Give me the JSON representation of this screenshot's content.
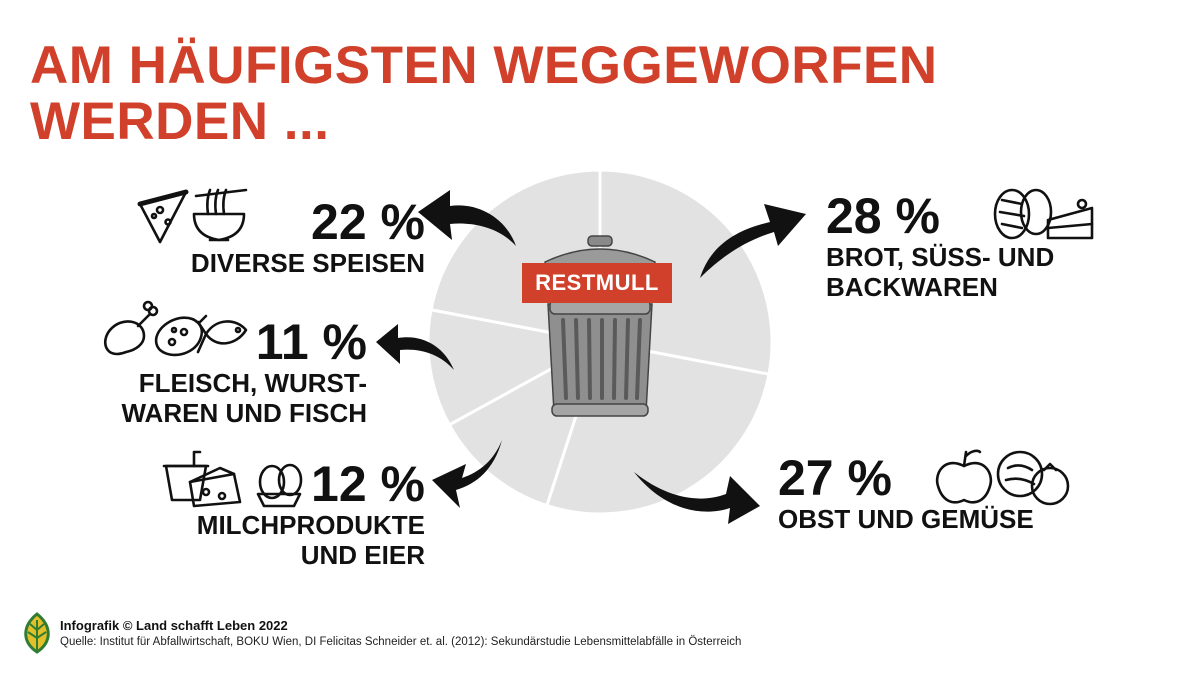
{
  "header": {
    "title_line1": "AM HÄUFIGSTEN WEGGEWORFEN",
    "title_line2": "WERDEN ..."
  },
  "center": {
    "bin_label": "RESTMULL"
  },
  "chart_data": {
    "type": "pie",
    "title": "AM HÄUFIGSTEN WEGGEWORFEN WERDEN ...",
    "unit": "%",
    "slices": [
      {
        "label": "BROT, SÜSS- UND BACKWAREN",
        "value": 28,
        "display": "28 %"
      },
      {
        "label": "OBST UND GEMÜSE",
        "value": 27,
        "display": "27 %"
      },
      {
        "label": "MILCHPRODUKTE UND EIER",
        "value": 12,
        "display": "12 %"
      },
      {
        "label": "FLEISCH, WURSTWAREN UND FISCH",
        "value": 11,
        "display": "11 %"
      },
      {
        "label": "DIVERSE SPEISEN",
        "value": 22,
        "display": "22 %"
      }
    ],
    "colors": {
      "slice": "#e2e2e2",
      "separator": "#ffffff",
      "accent": "#d0402a",
      "arrow": "#111111"
    }
  },
  "categories": {
    "brot": {
      "pct": "28 %",
      "label": "BROT, SÜSS- UND\nBACKWAREN",
      "icons": [
        "bread-icon",
        "cake-icon"
      ]
    },
    "obst": {
      "pct": "27 %",
      "label": "OBST UND GEMÜSE",
      "icons": [
        "apple-icon",
        "vegetables-icon"
      ]
    },
    "milch": {
      "pct": "12 %",
      "label": "MILCHPRODUKTE\nUND EIER",
      "icons": [
        "yogurt-icon",
        "cheese-icon",
        "egg-icon"
      ]
    },
    "fleisch": {
      "pct": "11 %",
      "label": "FLEISCH, WURST-\nWAREN UND FISCH",
      "icons": [
        "drumstick-icon",
        "sausage-icon",
        "fish-icon"
      ]
    },
    "diverse": {
      "pct": "22 %",
      "label": "DIVERSE SPEISEN",
      "icons": [
        "pizza-icon",
        "noodles-icon"
      ]
    }
  },
  "footer": {
    "credit": "Infografik © Land schafft Leben 2022",
    "source": "Quelle: Institut für Abfallwirtschaft, BOKU Wien, DI Felicitas Schneider et. al. (2012): Sekundärstudie Lebensmittelabfälle in Österreich"
  }
}
